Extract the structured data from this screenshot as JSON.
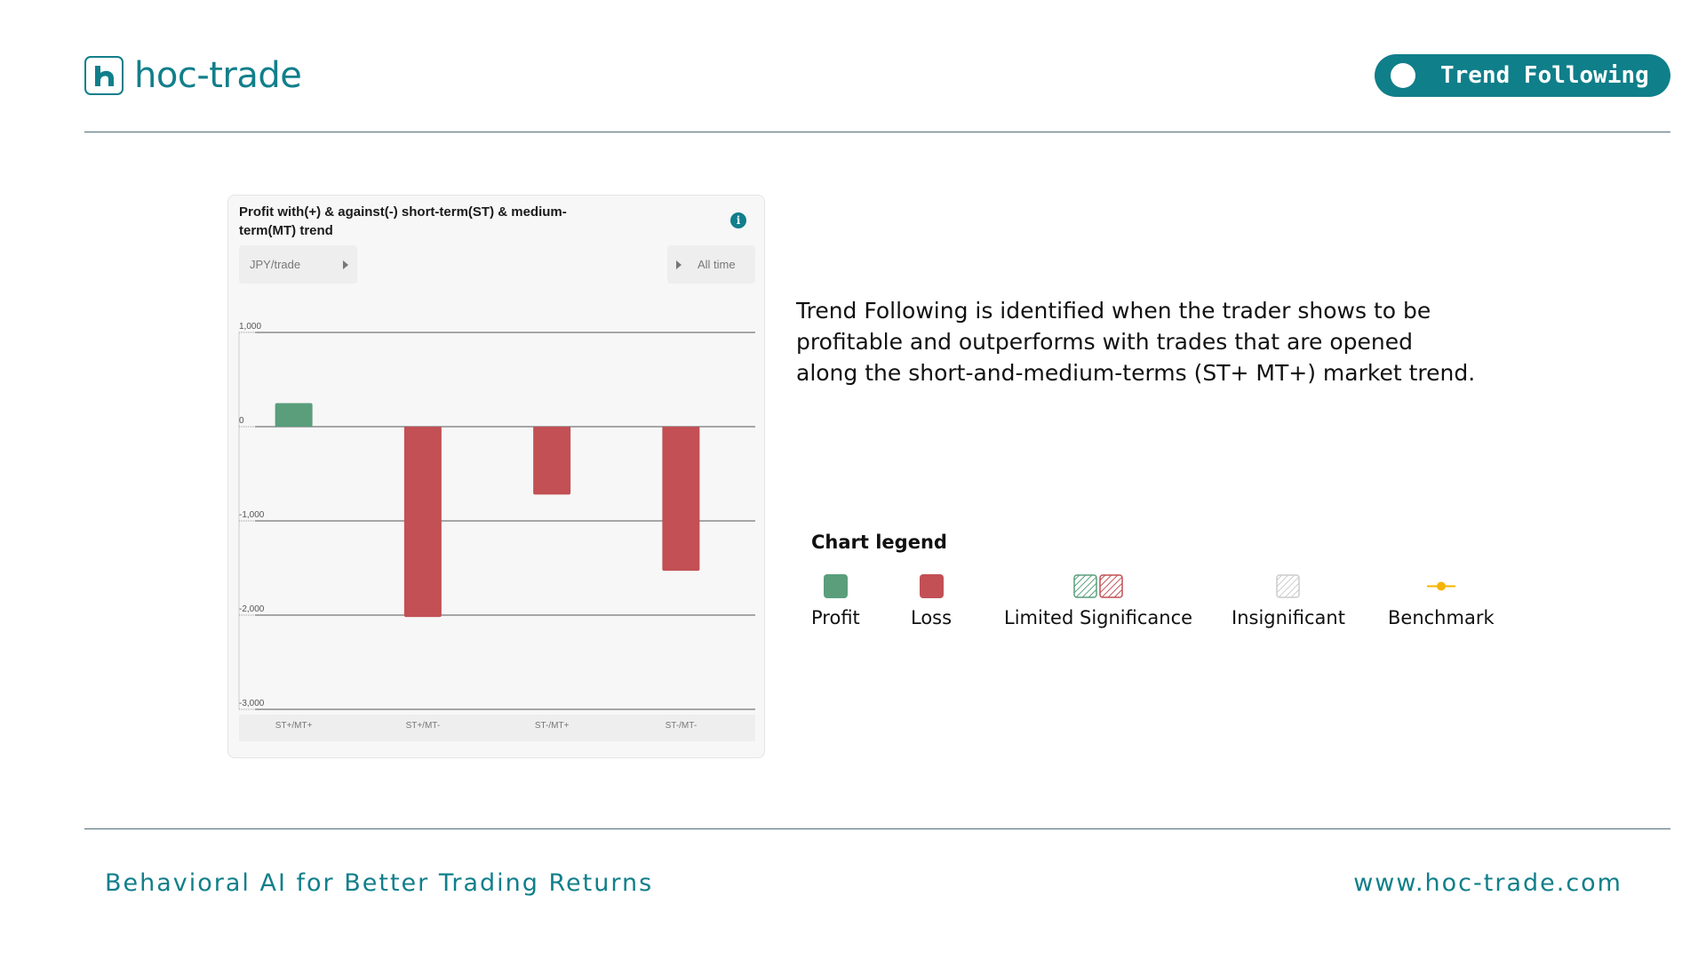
{
  "header": {
    "brand": "hoc-trade",
    "badge_label": "Trend Following"
  },
  "card": {
    "title": "Profit with(+) & against(-) short-term(ST) & medium-term(MT) trend",
    "unit_selector": "JPY/trade",
    "period_selector": "All time"
  },
  "chart_data": {
    "type": "bar",
    "title": "Profit with(+) & against(-) short-term(ST) & medium-term(MT) trend",
    "categories": [
      "ST+/MT+",
      "ST+/MT-",
      "ST-/MT+",
      "ST-/MT-"
    ],
    "values": [
      250,
      -2020,
      -720,
      -1530
    ],
    "bar_kind": [
      "profit",
      "loss",
      "loss",
      "loss"
    ],
    "ylim": [
      -3000,
      1000
    ],
    "yticks": [
      1000,
      0,
      -1000,
      -2000,
      -3000
    ],
    "ytick_labels": [
      "1,000",
      "0",
      "-1,000",
      "-2,000",
      "-3,000"
    ],
    "colors": {
      "profit": "#5a9e7c",
      "loss": "#c25054"
    },
    "grid": true
  },
  "description": "Trend Following is identified when the trader shows to be profitable and outperforms with trades that are opened along the short-and-medium-terms (ST+ MT+) market trend.",
  "legend": {
    "title": "Chart legend",
    "items": [
      {
        "label": "Profit",
        "icon": "profit-swatch",
        "color": "#5a9e7c"
      },
      {
        "label": "Loss",
        "icon": "loss-swatch",
        "color": "#c25054"
      },
      {
        "label": "Limited Significance",
        "icon": "hatched-swatch",
        "color": "#5a9e7c"
      },
      {
        "label": "Insignificant",
        "icon": "insignificant-swatch",
        "color": "#cccccc"
      },
      {
        "label": "Benchmark",
        "icon": "benchmark-marker",
        "color": "#f5b400"
      }
    ]
  },
  "footer": {
    "tagline": "Behavioral AI for Better Trading Returns",
    "website": "www.hoc-trade.com"
  }
}
